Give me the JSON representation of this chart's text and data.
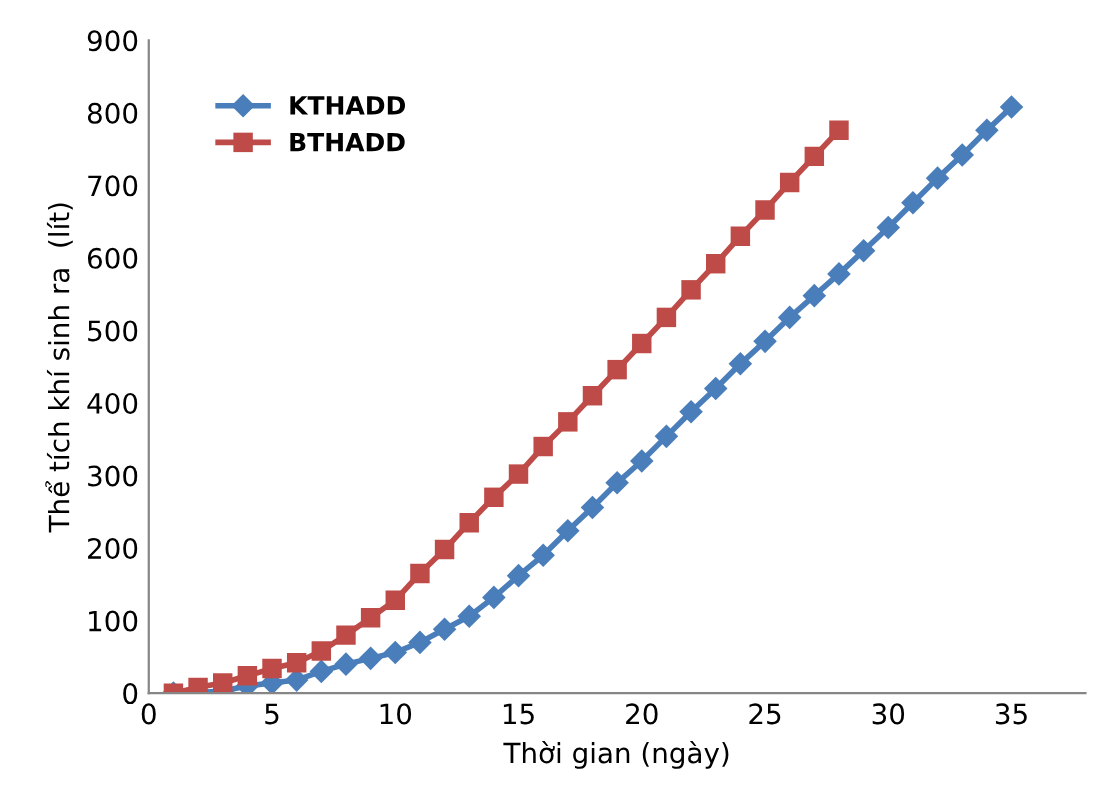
{
  "chart_data": {
    "type": "line",
    "xlabel": "Thời gian (ngày)",
    "ylabel": "Thể tích khí sinh ra  (lít)",
    "xlim": [
      0,
      38
    ],
    "xticks": [
      0,
      5,
      10,
      15,
      20,
      25,
      30,
      35
    ],
    "ylim": [
      0,
      900
    ],
    "yticks": [
      0,
      100,
      200,
      300,
      400,
      500,
      600,
      700,
      800,
      900
    ],
    "grid": false,
    "legend": "top left",
    "series": [
      {
        "name": "KTHADD",
        "color": "#4a7ebb",
        "marker": "diamond",
        "x": [
          1,
          2,
          3,
          4,
          5,
          6,
          7,
          8,
          9,
          10,
          11,
          12,
          13,
          14,
          15,
          16,
          17,
          18,
          19,
          20,
          21,
          22,
          23,
          24,
          25,
          26,
          27,
          28,
          29,
          30,
          31,
          32,
          33,
          34,
          35
        ],
        "values": [
          0,
          1,
          3,
          10,
          14,
          18,
          30,
          40,
          48,
          56,
          70,
          88,
          106,
          132,
          162,
          190,
          224,
          256,
          290,
          320,
          354,
          388,
          420,
          454,
          485,
          518,
          548,
          578,
          610,
          642,
          676,
          710,
          742,
          776,
          808
        ]
      },
      {
        "name": "BTHADD",
        "color": "#be4b48",
        "marker": "square",
        "x": [
          1,
          2,
          3,
          4,
          5,
          6,
          7,
          8,
          9,
          10,
          11,
          12,
          13,
          14,
          15,
          16,
          17,
          18,
          19,
          20,
          21,
          22,
          23,
          24,
          25,
          26,
          27,
          28
        ],
        "values": [
          0,
          8,
          14,
          24,
          34,
          42,
          58,
          80,
          104,
          128,
          165,
          198,
          235,
          270,
          302,
          340,
          374,
          410,
          446,
          482,
          518,
          556,
          592,
          630,
          666,
          704,
          740,
          776
        ]
      }
    ]
  }
}
